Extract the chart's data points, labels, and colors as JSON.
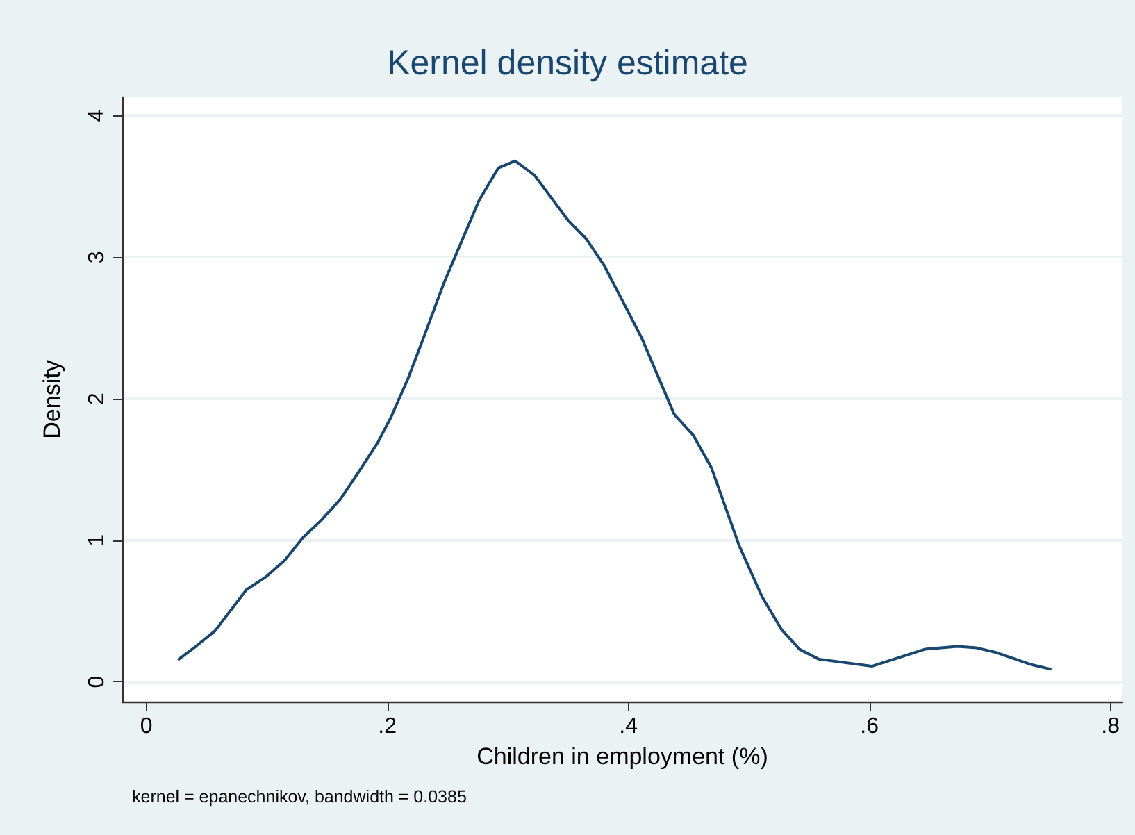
{
  "chart_data": {
    "type": "line",
    "title": "Kernel density estimate",
    "xlabel": "Children in employment (%)",
    "ylabel": "Density",
    "annotations": [
      "kernel = epanechnikov, bandwidth = 0.0385"
    ],
    "x": [
      0.027,
      0.041,
      0.057,
      0.083,
      0.099,
      0.115,
      0.13,
      0.145,
      0.161,
      0.176,
      0.192,
      0.203,
      0.217,
      0.23,
      0.247,
      0.261,
      0.276,
      0.292,
      0.306,
      0.322,
      0.35,
      0.365,
      0.38,
      0.411,
      0.438,
      0.454,
      0.469,
      0.492,
      0.511,
      0.527,
      0.542,
      0.558,
      0.602,
      0.646,
      0.673,
      0.689,
      0.704,
      0.735,
      0.75
    ],
    "series": [
      {
        "color": "#1a476f",
        "values": [
          0.16,
          0.25,
          0.36,
          0.65,
          0.74,
          0.86,
          1.02,
          1.14,
          1.29,
          1.48,
          1.69,
          1.87,
          2.14,
          2.43,
          2.82,
          3.1,
          3.4,
          3.63,
          3.68,
          3.58,
          3.26,
          3.13,
          2.94,
          2.43,
          1.89,
          1.74,
          1.51,
          0.96,
          0.6,
          0.37,
          0.23,
          0.16,
          0.11,
          0.23,
          0.25,
          0.24,
          0.21,
          0.12,
          0.09
        ]
      }
    ],
    "xlim": [
      -0.02,
      0.81
    ],
    "xticks": [
      {
        "value": 0,
        "label": "0"
      },
      {
        "value": 0.2,
        "label": ".2"
      },
      {
        "value": 0.4,
        "label": ".4"
      },
      {
        "value": 0.6,
        "label": ".6"
      },
      {
        "value": 0.8,
        "label": ".8"
      }
    ],
    "ylim": [
      -0.14,
      4.13
    ],
    "yticks": [
      0,
      1,
      2,
      3,
      4
    ],
    "grid": "y",
    "marker": "none",
    "line_style": "solid"
  }
}
